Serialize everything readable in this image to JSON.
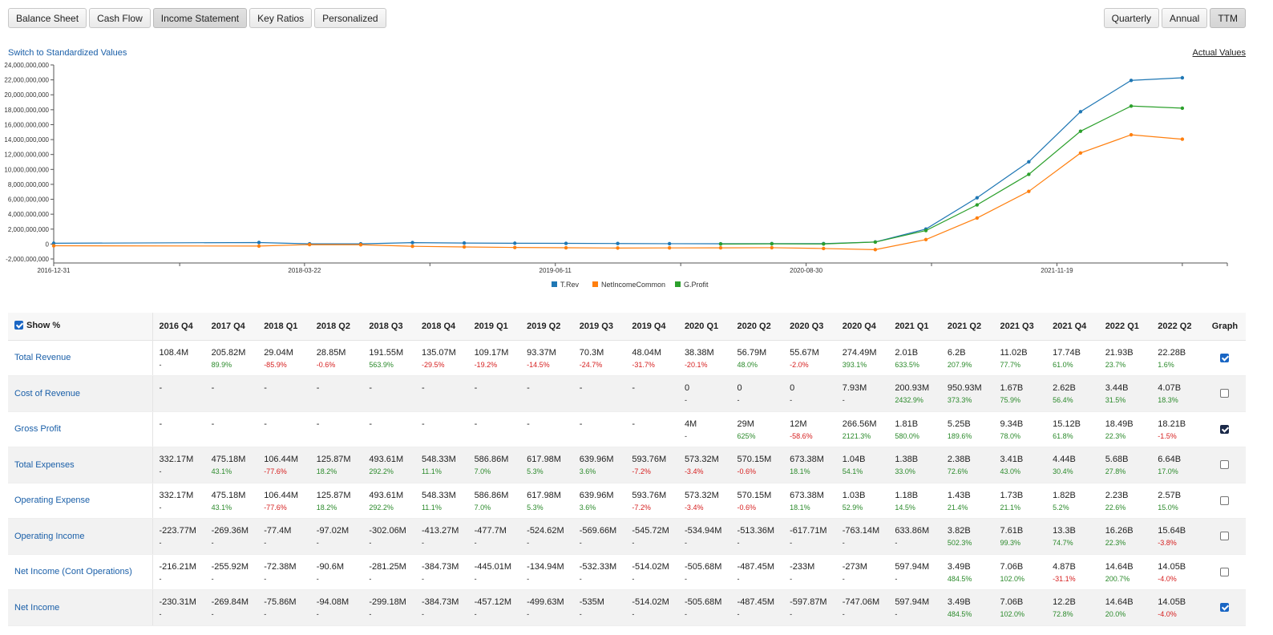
{
  "toolbar": {
    "tabs": [
      "Balance Sheet",
      "Cash Flow",
      "Income Statement",
      "Key Ratios",
      "Personalized"
    ],
    "active_tab": "Income Statement",
    "periods": [
      "Quarterly",
      "Annual",
      "TTM"
    ],
    "active_period": "TTM"
  },
  "links": {
    "switch": "Switch to Standardized Values",
    "actual": "Actual Values"
  },
  "chart_data": {
    "type": "line",
    "title": "",
    "xlabel": "",
    "ylabel": "",
    "x_ticks": [
      "2016-12-31",
      "2018-03-22",
      "2019-06-11",
      "2020-08-30",
      "2021-11-19"
    ],
    "y_ticks": [
      "24,000,000,000",
      "22,000,000,000",
      "20,000,000,000",
      "18,000,000,000",
      "16,000,000,000",
      "14,000,000,000",
      "12,000,000,000",
      "10,000,000,000",
      "8,000,000,000",
      "6,000,000,000",
      "4,000,000,000",
      "2,000,000,000",
      "0",
      "-2,000,000,000"
    ],
    "ylim": [
      -2000000000,
      24000000000
    ],
    "xlim": [
      "2016-12-31",
      "2022-09-18"
    ],
    "x": [
      "2016-12-31",
      "2017-12-31",
      "2018-03-31",
      "2018-06-30",
      "2018-09-30",
      "2018-12-31",
      "2019-03-31",
      "2019-06-30",
      "2019-09-30",
      "2019-12-31",
      "2020-03-31",
      "2020-06-30",
      "2020-09-30",
      "2020-12-31",
      "2021-03-31",
      "2021-06-30",
      "2021-09-30",
      "2021-12-31",
      "2022-03-31",
      "2022-06-30"
    ],
    "series": [
      {
        "name": "T.Rev",
        "color": "#1f77b4",
        "values": [
          108400000,
          205820000,
          29040000,
          28850000,
          191550000,
          135070000,
          109170000,
          93370000,
          70300000,
          48040000,
          38380000,
          56790000,
          55670000,
          274490000,
          2010000000,
          6200000000,
          11020000000,
          17740000000,
          21930000000,
          22280000000
        ]
      },
      {
        "name": "NetIncomeCommon",
        "color": "#ff7f0e",
        "values": [
          -230310000,
          -269840000,
          -75860000,
          -94080000,
          -299180000,
          -384730000,
          -457120000,
          -499630000,
          -535000000,
          -514020000,
          -505680000,
          -487450000,
          -597870000,
          -747060000,
          597940000,
          3490000000,
          7060000000,
          12200000000,
          14640000000,
          14050000000
        ]
      },
      {
        "name": "G.Profit",
        "color": "#2ca02c",
        "values": [
          null,
          null,
          null,
          null,
          null,
          null,
          null,
          null,
          null,
          null,
          4000000,
          29000000,
          12000000,
          266560000,
          1810000000,
          5250000000,
          9340000000,
          15120000000,
          18490000000,
          18210000000
        ]
      }
    ],
    "legend": "bottom-center",
    "grid": false
  },
  "table": {
    "show_pct_label": "Show %",
    "graph_label": "Graph",
    "periods": [
      "2016 Q4",
      "2017 Q4",
      "2018 Q1",
      "2018 Q2",
      "2018 Q3",
      "2018 Q4",
      "2019 Q1",
      "2019 Q2",
      "2019 Q3",
      "2019 Q4",
      "2020 Q1",
      "2020 Q2",
      "2020 Q3",
      "2020 Q4",
      "2021 Q1",
      "2021 Q2",
      "2021 Q3",
      "2021 Q4",
      "2022 Q1",
      "2022 Q2"
    ],
    "rows": [
      {
        "label": "Total Revenue",
        "graph": true,
        "values": [
          "108.4M",
          "205.82M",
          "29.04M",
          "28.85M",
          "191.55M",
          "135.07M",
          "109.17M",
          "93.37M",
          "70.3M",
          "48.04M",
          "38.38M",
          "56.79M",
          "55.67M",
          "274.49M",
          "2.01B",
          "6.2B",
          "11.02B",
          "17.74B",
          "21.93B",
          "22.28B"
        ],
        "pct": [
          "-",
          "89.9%",
          "-85.9%",
          "-0.6%",
          "563.9%",
          "-29.5%",
          "-19.2%",
          "-14.5%",
          "-24.7%",
          "-31.7%",
          "-20.1%",
          "48.0%",
          "-2.0%",
          "393.1%",
          "633.5%",
          "207.9%",
          "77.7%",
          "61.0%",
          "23.7%",
          "1.6%"
        ]
      },
      {
        "label": "Cost of Revenue",
        "graph": false,
        "values": [
          "-",
          "-",
          "-",
          "-",
          "-",
          "-",
          "-",
          "-",
          "-",
          "-",
          "0",
          "0",
          "0",
          "7.93M",
          "200.93M",
          "950.93M",
          "1.67B",
          "2.62B",
          "3.44B",
          "4.07B"
        ],
        "pct": [
          "",
          "",
          "",
          "",
          "",
          "",
          "",
          "",
          "",
          "",
          "-",
          "-",
          "-",
          "-",
          "2432.9%",
          "373.3%",
          "75.9%",
          "56.4%",
          "31.5%",
          "18.3%"
        ]
      },
      {
        "label": "Gross Profit",
        "graph": true,
        "values": [
          "-",
          "-",
          "-",
          "-",
          "-",
          "-",
          "-",
          "-",
          "-",
          "-",
          "4M",
          "29M",
          "12M",
          "266.56M",
          "1.81B",
          "5.25B",
          "9.34B",
          "15.12B",
          "18.49B",
          "18.21B"
        ],
        "pct": [
          "",
          "",
          "",
          "",
          "",
          "",
          "",
          "",
          "",
          "",
          "-",
          "625%",
          "-58.6%",
          "2121.3%",
          "580.0%",
          "189.6%",
          "78.0%",
          "61.8%",
          "22.3%",
          "-1.5%"
        ]
      },
      {
        "label": "Total Expenses",
        "graph": false,
        "values": [
          "332.17M",
          "475.18M",
          "106.44M",
          "125.87M",
          "493.61M",
          "548.33M",
          "586.86M",
          "617.98M",
          "639.96M",
          "593.76M",
          "573.32M",
          "570.15M",
          "673.38M",
          "1.04B",
          "1.38B",
          "2.38B",
          "3.41B",
          "4.44B",
          "5.68B",
          "6.64B"
        ],
        "pct": [
          "-",
          "43.1%",
          "-77.6%",
          "18.2%",
          "292.2%",
          "11.1%",
          "7.0%",
          "5.3%",
          "3.6%",
          "-7.2%",
          "-3.4%",
          "-0.6%",
          "18.1%",
          "54.1%",
          "33.0%",
          "72.6%",
          "43.0%",
          "30.4%",
          "27.8%",
          "17.0%"
        ]
      },
      {
        "label": "Operating Expense",
        "graph": false,
        "values": [
          "332.17M",
          "475.18M",
          "106.44M",
          "125.87M",
          "493.61M",
          "548.33M",
          "586.86M",
          "617.98M",
          "639.96M",
          "593.76M",
          "573.32M",
          "570.15M",
          "673.38M",
          "1.03B",
          "1.18B",
          "1.43B",
          "1.73B",
          "1.82B",
          "2.23B",
          "2.57B"
        ],
        "pct": [
          "-",
          "43.1%",
          "-77.6%",
          "18.2%",
          "292.2%",
          "11.1%",
          "7.0%",
          "5.3%",
          "3.6%",
          "-7.2%",
          "-3.4%",
          "-0.6%",
          "18.1%",
          "52.9%",
          "14.5%",
          "21.4%",
          "21.1%",
          "5.2%",
          "22.6%",
          "15.0%"
        ]
      },
      {
        "label": "Operating Income",
        "graph": false,
        "values": [
          "-223.77M",
          "-269.36M",
          "-77.4M",
          "-97.02M",
          "-302.06M",
          "-413.27M",
          "-477.7M",
          "-524.62M",
          "-569.66M",
          "-545.72M",
          "-534.94M",
          "-513.36M",
          "-617.71M",
          "-763.14M",
          "633.86M",
          "3.82B",
          "7.61B",
          "13.3B",
          "16.26B",
          "15.64B"
        ],
        "pct": [
          "-",
          "-",
          "-",
          "-",
          "-",
          "-",
          "-",
          "-",
          "-",
          "-",
          "-",
          "-",
          "-",
          "-",
          "-",
          "502.3%",
          "99.3%",
          "74.7%",
          "22.3%",
          "-3.8%"
        ]
      },
      {
        "label": "Net Income (Cont Operations)",
        "graph": false,
        "values": [
          "-216.21M",
          "-255.92M",
          "-72.38M",
          "-90.6M",
          "-281.25M",
          "-384.73M",
          "-445.01M",
          "-134.94M",
          "-532.33M",
          "-514.02M",
          "-505.68M",
          "-487.45M",
          "-233M",
          "-273M",
          "597.94M",
          "3.49B",
          "7.06B",
          "4.87B",
          "14.64B",
          "14.05B"
        ],
        "pct": [
          "-",
          "-",
          "-",
          "-",
          "-",
          "-",
          "-",
          "-",
          "-",
          "-",
          "-",
          "-",
          "-",
          "-",
          "-",
          "484.5%",
          "102.0%",
          "-31.1%",
          "200.7%",
          "-4.0%"
        ]
      },
      {
        "label": "Net Income",
        "graph": true,
        "values": [
          "-230.31M",
          "-269.84M",
          "-75.86M",
          "-94.08M",
          "-299.18M",
          "-384.73M",
          "-457.12M",
          "-499.63M",
          "-535M",
          "-514.02M",
          "-505.68M",
          "-487.45M",
          "-597.87M",
          "-747.06M",
          "597.94M",
          "3.49B",
          "7.06B",
          "12.2B",
          "14.64B",
          "14.05B"
        ],
        "pct": [
          "-",
          "-",
          "-",
          "-",
          "-",
          "-",
          "-",
          "-",
          "-",
          "-",
          "-",
          "-",
          "-",
          "-",
          "-",
          "484.5%",
          "102.0%",
          "72.8%",
          "20.0%",
          "-4.0%"
        ]
      }
    ]
  }
}
